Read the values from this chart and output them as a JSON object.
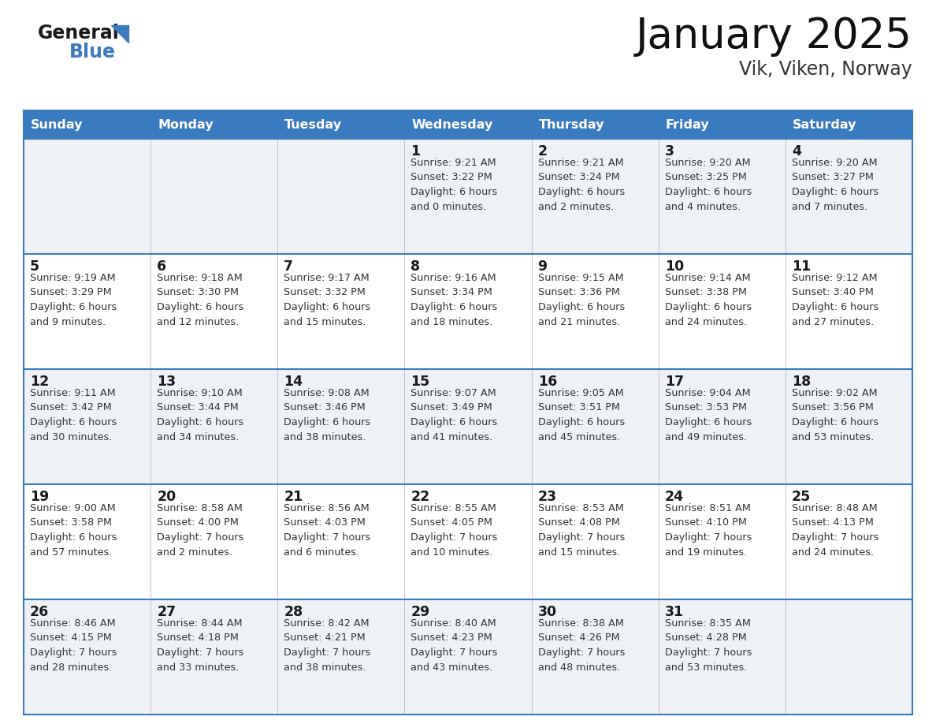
{
  "title": "January 2025",
  "subtitle": "Vik, Viken, Norway",
  "header_color": "#3a7abf",
  "header_text_color": "#ffffff",
  "cell_bg_light": "#eef2f7",
  "cell_bg_white": "#ffffff",
  "border_color": "#3a7abf",
  "text_color": "#1a1a1a",
  "info_color": "#333333",
  "day_names": [
    "Sunday",
    "Monday",
    "Tuesday",
    "Wednesday",
    "Thursday",
    "Friday",
    "Saturday"
  ],
  "weeks": [
    [
      {
        "day": "",
        "info": ""
      },
      {
        "day": "",
        "info": ""
      },
      {
        "day": "",
        "info": ""
      },
      {
        "day": "1",
        "info": "Sunrise: 9:21 AM\nSunset: 3:22 PM\nDaylight: 6 hours\nand 0 minutes."
      },
      {
        "day": "2",
        "info": "Sunrise: 9:21 AM\nSunset: 3:24 PM\nDaylight: 6 hours\nand 2 minutes."
      },
      {
        "day": "3",
        "info": "Sunrise: 9:20 AM\nSunset: 3:25 PM\nDaylight: 6 hours\nand 4 minutes."
      },
      {
        "day": "4",
        "info": "Sunrise: 9:20 AM\nSunset: 3:27 PM\nDaylight: 6 hours\nand 7 minutes."
      }
    ],
    [
      {
        "day": "5",
        "info": "Sunrise: 9:19 AM\nSunset: 3:29 PM\nDaylight: 6 hours\nand 9 minutes."
      },
      {
        "day": "6",
        "info": "Sunrise: 9:18 AM\nSunset: 3:30 PM\nDaylight: 6 hours\nand 12 minutes."
      },
      {
        "day": "7",
        "info": "Sunrise: 9:17 AM\nSunset: 3:32 PM\nDaylight: 6 hours\nand 15 minutes."
      },
      {
        "day": "8",
        "info": "Sunrise: 9:16 AM\nSunset: 3:34 PM\nDaylight: 6 hours\nand 18 minutes."
      },
      {
        "day": "9",
        "info": "Sunrise: 9:15 AM\nSunset: 3:36 PM\nDaylight: 6 hours\nand 21 minutes."
      },
      {
        "day": "10",
        "info": "Sunrise: 9:14 AM\nSunset: 3:38 PM\nDaylight: 6 hours\nand 24 minutes."
      },
      {
        "day": "11",
        "info": "Sunrise: 9:12 AM\nSunset: 3:40 PM\nDaylight: 6 hours\nand 27 minutes."
      }
    ],
    [
      {
        "day": "12",
        "info": "Sunrise: 9:11 AM\nSunset: 3:42 PM\nDaylight: 6 hours\nand 30 minutes."
      },
      {
        "day": "13",
        "info": "Sunrise: 9:10 AM\nSunset: 3:44 PM\nDaylight: 6 hours\nand 34 minutes."
      },
      {
        "day": "14",
        "info": "Sunrise: 9:08 AM\nSunset: 3:46 PM\nDaylight: 6 hours\nand 38 minutes."
      },
      {
        "day": "15",
        "info": "Sunrise: 9:07 AM\nSunset: 3:49 PM\nDaylight: 6 hours\nand 41 minutes."
      },
      {
        "day": "16",
        "info": "Sunrise: 9:05 AM\nSunset: 3:51 PM\nDaylight: 6 hours\nand 45 minutes."
      },
      {
        "day": "17",
        "info": "Sunrise: 9:04 AM\nSunset: 3:53 PM\nDaylight: 6 hours\nand 49 minutes."
      },
      {
        "day": "18",
        "info": "Sunrise: 9:02 AM\nSunset: 3:56 PM\nDaylight: 6 hours\nand 53 minutes."
      }
    ],
    [
      {
        "day": "19",
        "info": "Sunrise: 9:00 AM\nSunset: 3:58 PM\nDaylight: 6 hours\nand 57 minutes."
      },
      {
        "day": "20",
        "info": "Sunrise: 8:58 AM\nSunset: 4:00 PM\nDaylight: 7 hours\nand 2 minutes."
      },
      {
        "day": "21",
        "info": "Sunrise: 8:56 AM\nSunset: 4:03 PM\nDaylight: 7 hours\nand 6 minutes."
      },
      {
        "day": "22",
        "info": "Sunrise: 8:55 AM\nSunset: 4:05 PM\nDaylight: 7 hours\nand 10 minutes."
      },
      {
        "day": "23",
        "info": "Sunrise: 8:53 AM\nSunset: 4:08 PM\nDaylight: 7 hours\nand 15 minutes."
      },
      {
        "day": "24",
        "info": "Sunrise: 8:51 AM\nSunset: 4:10 PM\nDaylight: 7 hours\nand 19 minutes."
      },
      {
        "day": "25",
        "info": "Sunrise: 8:48 AM\nSunset: 4:13 PM\nDaylight: 7 hours\nand 24 minutes."
      }
    ],
    [
      {
        "day": "26",
        "info": "Sunrise: 8:46 AM\nSunset: 4:15 PM\nDaylight: 7 hours\nand 28 minutes."
      },
      {
        "day": "27",
        "info": "Sunrise: 8:44 AM\nSunset: 4:18 PM\nDaylight: 7 hours\nand 33 minutes."
      },
      {
        "day": "28",
        "info": "Sunrise: 8:42 AM\nSunset: 4:21 PM\nDaylight: 7 hours\nand 38 minutes."
      },
      {
        "day": "29",
        "info": "Sunrise: 8:40 AM\nSunset: 4:23 PM\nDaylight: 7 hours\nand 43 minutes."
      },
      {
        "day": "30",
        "info": "Sunrise: 8:38 AM\nSunset: 4:26 PM\nDaylight: 7 hours\nand 48 minutes."
      },
      {
        "day": "31",
        "info": "Sunrise: 8:35 AM\nSunset: 4:28 PM\nDaylight: 7 hours\nand 53 minutes."
      },
      {
        "day": "",
        "info": ""
      }
    ]
  ],
  "logo_general_color": "#1a1a1a",
  "logo_blue_color": "#3a7abf",
  "logo_triangle_color": "#3a7abf"
}
